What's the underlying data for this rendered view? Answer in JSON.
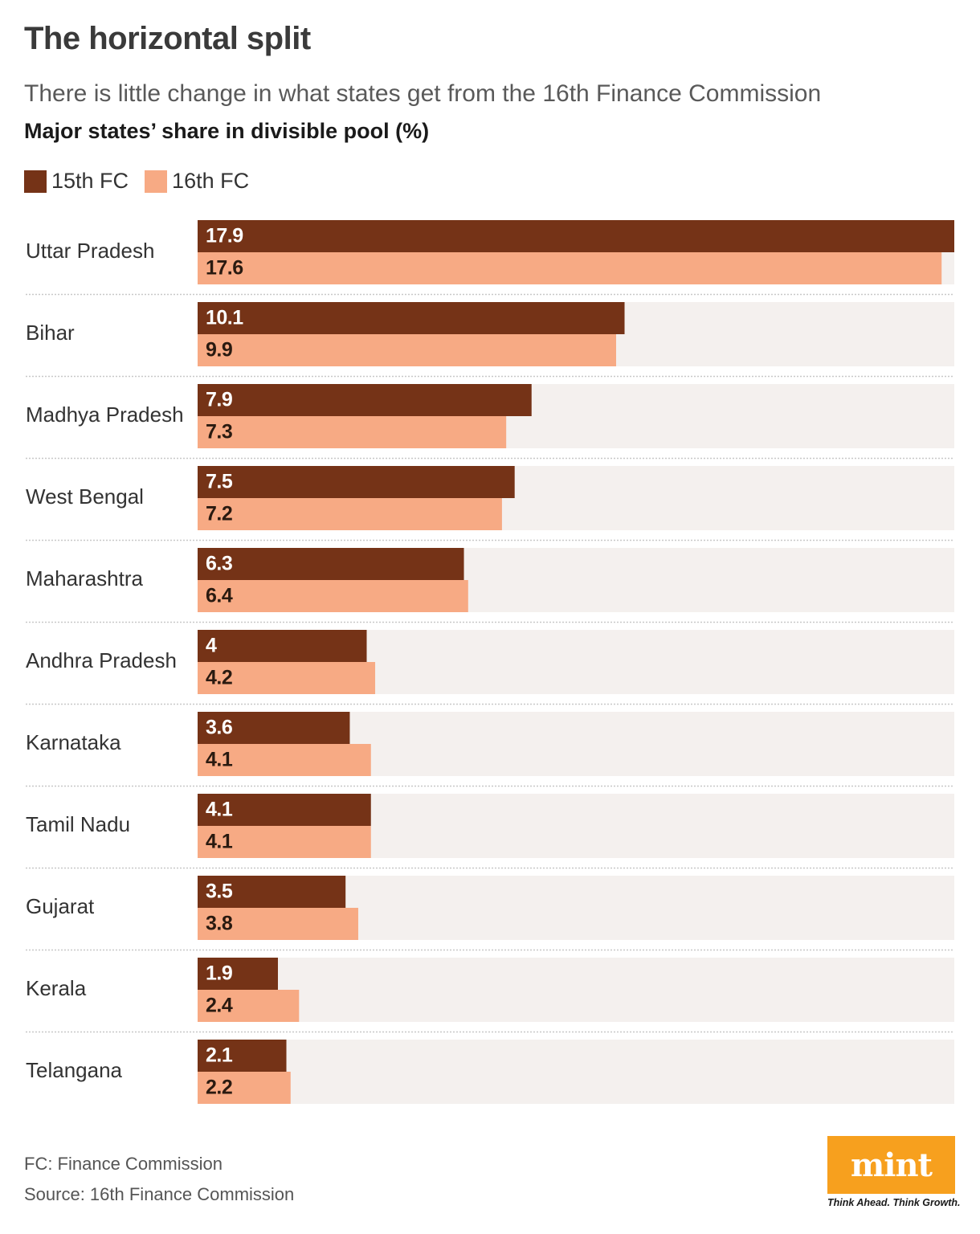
{
  "header": {
    "title": "The horizontal split",
    "subtitle": "There is little change in what states get from the 16th Finance Commission",
    "chart_heading": "Major states’ share in divisible pool (%)"
  },
  "colors": {
    "series_15th": "#753317",
    "series_16th": "#f7aa84",
    "track": "#f4f0ee",
    "divider": "#c8c8c8",
    "label_on_dark": "#ffffff",
    "label_on_light": "#2a1a10"
  },
  "chart_data": {
    "type": "bar",
    "orientation": "horizontal",
    "title": "Major states’ share in divisible pool (%)",
    "categories": [
      "Uttar Pradesh",
      "Bihar",
      "Madhya Pradesh",
      "West Bengal",
      "Maharashtra",
      "Andhra Pradesh",
      "Karnataka",
      "Tamil Nadu",
      "Gujarat",
      "Kerala",
      "Telangana"
    ],
    "series": [
      {
        "name": "15th FC",
        "values": [
          17.9,
          10.1,
          7.9,
          7.5,
          6.3,
          4,
          3.6,
          4.1,
          3.5,
          1.9,
          2.1
        ]
      },
      {
        "name": "16th FC",
        "values": [
          17.6,
          9.9,
          7.3,
          7.2,
          6.4,
          4.2,
          4.1,
          4.1,
          3.8,
          2.4,
          2.2
        ]
      }
    ],
    "value_labels": [
      [
        "17.9",
        "10.1",
        "7.9",
        "7.5",
        "6.3",
        "4",
        "3.6",
        "4.1",
        "3.5",
        "1.9",
        "2.1"
      ],
      [
        "17.6",
        "9.9",
        "7.3",
        "7.2",
        "6.4",
        "4.2",
        "4.1",
        "4.1",
        "3.8",
        "2.4",
        "2.2"
      ]
    ],
    "xlim": [
      0,
      17.9
    ],
    "legend_position": "top-left",
    "grid": false
  },
  "footer": {
    "note": "FC: Finance Commission",
    "source": "Source: 16th Finance Commission",
    "logo_text": "mint",
    "tagline": "Think Ahead. Think Growth."
  }
}
